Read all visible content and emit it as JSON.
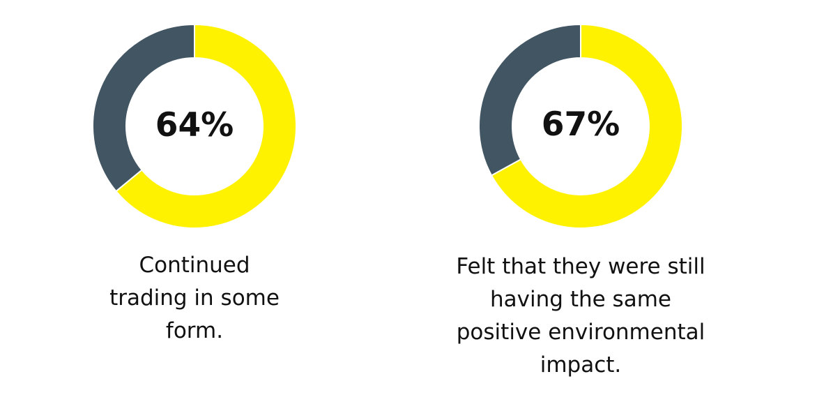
{
  "chart_data": [
    {
      "type": "pie",
      "categories": [
        "Continued trading in some form.",
        "Other"
      ],
      "values": [
        64,
        36
      ],
      "center_label": "64%",
      "caption_lines": [
        "Continued",
        "trading in some",
        "form."
      ],
      "colors": {
        "highlight": "#fff200",
        "remainder": "#425563"
      }
    },
    {
      "type": "pie",
      "categories": [
        "Felt that they were still having the same positive environmental impact.",
        "Other"
      ],
      "values": [
        67,
        33
      ],
      "center_label": "67%",
      "caption_lines": [
        "Felt that they were still",
        "having the same",
        "positive environmental",
        "impact."
      ],
      "colors": {
        "highlight": "#fff200",
        "remainder": "#425563"
      }
    }
  ]
}
